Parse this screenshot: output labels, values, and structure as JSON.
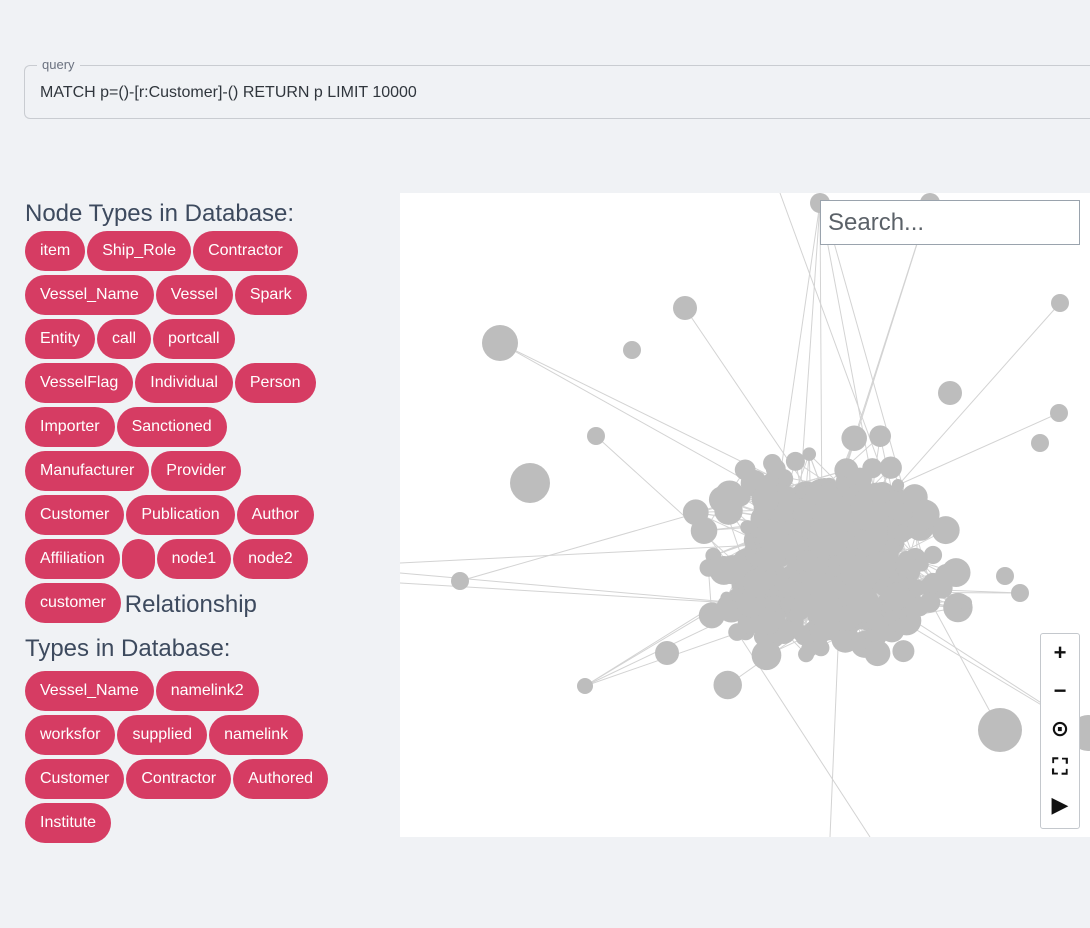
{
  "query": {
    "legend": "query",
    "value": "MATCH p=()-[r:Customer]-() RETURN p LIMIT 10000"
  },
  "node_types": {
    "heading": "Node Types in Database:",
    "items": [
      "item",
      "Ship_Role",
      "Contractor",
      "Vessel_Name",
      "Vessel",
      "Spark",
      "Entity",
      "call",
      "portcall",
      "VesselFlag",
      "Individual",
      "Person",
      "Importer",
      "Sanctioned",
      "Manufacturer",
      "Provider",
      "Customer",
      "Publication",
      "Author",
      "Affiliation",
      "",
      "node1",
      "node2",
      "customer"
    ]
  },
  "relationship_types": {
    "heading_part1": "Relationship",
    "heading_part2": "Types in Database:",
    "items": [
      "Vessel_Name",
      "namelink2",
      "worksfor",
      "supplied",
      "namelink",
      "Customer",
      "Contractor",
      "Authored",
      "Institute"
    ]
  },
  "graph": {
    "search_placeholder": "Search...",
    "controls": [
      {
        "name": "zoom-in-icon",
        "glyph": "+"
      },
      {
        "name": "zoom-out-icon",
        "glyph": "−"
      },
      {
        "name": "center-focus-icon",
        "glyph": "⊙"
      },
      {
        "name": "fullscreen-icon",
        "glyph": "⛶"
      },
      {
        "name": "play-icon",
        "glyph": "▶"
      }
    ],
    "node_color": "#bdbdbd",
    "edge_color": "#d3d3d3"
  },
  "colors": {
    "chip": "#d63c63",
    "heading": "#3d4a5e",
    "background": "#f0f2f5"
  }
}
